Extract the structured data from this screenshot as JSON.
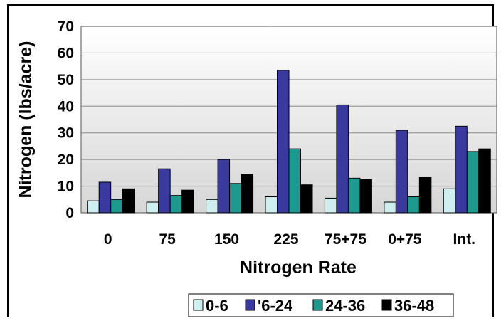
{
  "chart_data": {
    "type": "bar",
    "title": "",
    "xlabel": "Nitrogen Rate",
    "ylabel": "Nitrogen (lbs/acre)",
    "ylim": [
      0,
      70
    ],
    "yticks": [
      "0",
      "10",
      "20",
      "30",
      "40",
      "50",
      "60",
      "70"
    ],
    "categories": [
      "0",
      "75",
      "150",
      "225",
      "75+75",
      "0+75",
      "Int."
    ],
    "series": [
      {
        "name": "0-6",
        "color": "#cfeef0",
        "values": [
          4.5,
          4,
          5,
          6,
          5.5,
          4,
          9
        ]
      },
      {
        "name": "'6-24",
        "color": "#3a3a9e",
        "values": [
          11.5,
          16.5,
          20,
          53.5,
          40.5,
          31,
          32.5
        ]
      },
      {
        "name": "24-36",
        "color": "#1c9a8e",
        "values": [
          5,
          6.5,
          11,
          24,
          13,
          6,
          23
        ]
      },
      {
        "name": "36-48",
        "color": "#000000",
        "values": [
          9,
          8.5,
          14.5,
          10.5,
          12.5,
          13.5,
          24
        ]
      }
    ],
    "grid": true,
    "legend": "bottom"
  }
}
